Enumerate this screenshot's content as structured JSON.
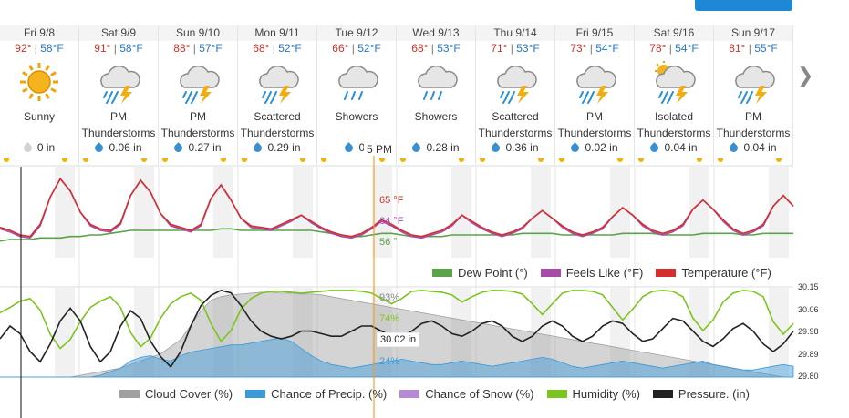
{
  "days": [
    {
      "date": "Fri 9/8",
      "hi": "92°",
      "lo": "58°F",
      "icon": "sunny-icon",
      "cond": [
        "Sunny"
      ],
      "precip": "0 in",
      "drop": "gray"
    },
    {
      "date": "Sat 9/9",
      "hi": "91°",
      "lo": "58°F",
      "icon": "thunderstorm-icon",
      "cond": [
        "PM",
        "Thunderstorms"
      ],
      "precip": "0.06 in",
      "drop": "blue"
    },
    {
      "date": "Sun 9/10",
      "hi": "88°",
      "lo": "57°F",
      "icon": "thunderstorm-icon",
      "cond": [
        "PM",
        "Thunderstorms"
      ],
      "precip": "0.27 in",
      "drop": "blue"
    },
    {
      "date": "Mon 9/11",
      "hi": "68°",
      "lo": "52°F",
      "icon": "thunderstorm-icon",
      "cond": [
        "Scattered",
        "Thunderstorms"
      ],
      "precip": "0.29 in",
      "drop": "blue"
    },
    {
      "date": "Tue 9/12",
      "hi": "66°",
      "lo": "52°F",
      "icon": "showers-icon",
      "cond": [
        "Showers"
      ],
      "precip": "0.",
      "drop": "blue"
    },
    {
      "date": "Wed 9/13",
      "hi": "68°",
      "lo": "53°F",
      "icon": "showers-icon",
      "cond": [
        "Showers"
      ],
      "precip": "0.28 in",
      "drop": "blue"
    },
    {
      "date": "Thu 9/14",
      "hi": "71°",
      "lo": "53°F",
      "icon": "thunderstorm-icon",
      "cond": [
        "Scattered",
        "Thunderstorms"
      ],
      "precip": "0.36 in",
      "drop": "blue"
    },
    {
      "date": "Fri 9/15",
      "hi": "73°",
      "lo": "54°F",
      "icon": "thunderstorm-icon",
      "cond": [
        "PM",
        "Thunderstorms"
      ],
      "precip": "0.02 in",
      "drop": "blue"
    },
    {
      "date": "Sat 9/16",
      "hi": "78°",
      "lo": "54°F",
      "icon": "isolated-thunderstorm-icon",
      "cond": [
        "Isolated",
        "Thunderstorms"
      ],
      "precip": "0.04 in",
      "drop": "blue"
    },
    {
      "date": "Sun 9/17",
      "hi": "81°",
      "lo": "55°F",
      "icon": "thunderstorm-icon",
      "cond": [
        "PM",
        "Thunderstorms"
      ],
      "precip": "0.04 in",
      "drop": "blue"
    }
  ],
  "cursor": {
    "time": "5 PM",
    "temp": "65 °F",
    "feels": "64 °F",
    "dew": "56 °",
    "humidity": "74%",
    "cloud": "93%",
    "precip_chance": "24%",
    "pressure": "30.02 in"
  },
  "temp_legend": [
    {
      "label": "Dew Point (°)",
      "color": "#5aa34a"
    },
    {
      "label": "Feels Like (°F)",
      "color": "#a64ca6"
    },
    {
      "label": "Temperature (°F)",
      "color": "#d32f2f"
    }
  ],
  "lower_legend": [
    {
      "label": "Cloud Cover (%)",
      "color": "#a0a0a0"
    },
    {
      "label": "Chance of Precip. (%)",
      "color": "#3a9ad9"
    },
    {
      "label": "Chance of Snow (%)",
      "color": "#b58ad6"
    },
    {
      "label": "Humidity (%)",
      "color": "#7cc41f"
    },
    {
      "label": "Pressure. (in)",
      "color": "#222222"
    }
  ],
  "pressure_axis": [
    "30.15",
    "30.06",
    "29.98",
    "29.89",
    "29.80"
  ],
  "next_icon": "chevron-right-icon",
  "chart_data": {
    "type": "line",
    "hours_per_point": 6,
    "temperature": [
      60,
      58,
      55,
      54,
      62,
      80,
      92,
      84,
      70,
      62,
      59,
      58,
      63,
      81,
      91,
      83,
      69,
      62,
      60,
      58,
      62,
      79,
      88,
      78,
      66,
      61,
      60,
      59,
      62,
      65,
      68,
      64,
      60,
      57,
      55,
      54,
      56,
      60,
      65,
      62,
      58,
      55,
      54,
      56,
      58,
      62,
      68,
      64,
      60,
      57,
      55,
      57,
      60,
      66,
      71,
      66,
      61,
      57,
      55,
      57,
      60,
      67,
      73,
      68,
      62,
      58,
      56,
      58,
      62,
      72,
      78,
      72,
      65,
      59,
      56,
      58,
      62,
      74,
      81,
      74
    ],
    "dew_point": [
      51,
      52,
      52,
      52,
      53,
      53,
      53,
      54,
      54,
      55,
      55,
      56,
      57,
      58,
      58,
      58,
      58,
      58,
      58,
      58,
      58,
      58,
      59,
      59,
      58,
      58,
      58,
      58,
      58,
      58,
      58,
      58,
      57,
      56,
      55,
      54,
      54,
      55,
      56,
      56,
      55,
      54,
      54,
      54,
      54,
      55,
      55,
      55,
      55,
      55,
      55,
      55,
      56,
      56,
      56,
      56,
      55,
      55,
      55,
      55,
      55,
      55,
      56,
      56,
      56,
      56,
      55,
      55,
      55,
      55,
      56,
      56,
      56,
      56,
      55,
      55,
      56,
      56,
      56,
      56
    ],
    "humidity": [
      72,
      78,
      85,
      88,
      75,
      48,
      32,
      42,
      62,
      78,
      85,
      90,
      78,
      50,
      34,
      44,
      66,
      82,
      90,
      94,
      86,
      60,
      40,
      52,
      76,
      88,
      94,
      96,
      96,
      95,
      94,
      95,
      96,
      97,
      97,
      97,
      96,
      94,
      88,
      82,
      88,
      96,
      97,
      96,
      95,
      92,
      84,
      90,
      95,
      97,
      97,
      96,
      93,
      82,
      70,
      82,
      94,
      97,
      97,
      96,
      92,
      78,
      64,
      76,
      90,
      96,
      97,
      96,
      90,
      66,
      52,
      64,
      84,
      94,
      97,
      96,
      90,
      62,
      48,
      60
    ],
    "cloud_cover": [
      0,
      0,
      0,
      0,
      0,
      0,
      0,
      0,
      2,
      4,
      6,
      8,
      10,
      14,
      18,
      22,
      26,
      34,
      42,
      58,
      74,
      86,
      90,
      92,
      93,
      94,
      95,
      95,
      94,
      94,
      93,
      93,
      92,
      90,
      88,
      86,
      84,
      82,
      80,
      78,
      76,
      74,
      72,
      70,
      68,
      66,
      64,
      62,
      60,
      58,
      56,
      54,
      52,
      50,
      48,
      46,
      44,
      42,
      40,
      38,
      36,
      34,
      32,
      30,
      28,
      26,
      24,
      22,
      20,
      18,
      16,
      14,
      12,
      10,
      8,
      6,
      4,
      2,
      0,
      0
    ],
    "precip_chance": [
      0,
      0,
      0,
      0,
      0,
      0,
      0,
      0,
      0,
      0,
      2,
      6,
      10,
      18,
      22,
      24,
      20,
      18,
      24,
      28,
      30,
      32,
      34,
      36,
      36,
      38,
      40,
      42,
      44,
      40,
      32,
      24,
      18,
      14,
      12,
      10,
      12,
      14,
      16,
      18,
      20,
      18,
      16,
      14,
      14,
      16,
      18,
      16,
      14,
      12,
      14,
      16,
      18,
      20,
      22,
      20,
      16,
      12,
      10,
      12,
      14,
      16,
      18,
      16,
      14,
      12,
      10,
      12,
      14,
      16,
      18,
      14,
      12,
      10,
      8,
      8,
      10,
      12,
      14,
      12
    ],
    "pressure": [
      29.95,
      30.0,
      29.97,
      29.9,
      29.86,
      29.93,
      30.02,
      30.07,
      30.02,
      29.92,
      29.86,
      29.9,
      30.0,
      30.06,
      30.03,
      29.94,
      29.88,
      29.84,
      29.9,
      30.0,
      30.08,
      30.12,
      30.14,
      30.13,
      30.08,
      30.02,
      29.98,
      29.96,
      29.95,
      29.96,
      29.98,
      29.98,
      29.97,
      29.96,
      29.96,
      29.98,
      30.0,
      30.0,
      29.98,
      29.96,
      29.96,
      29.98,
      30.01,
      30.02,
      30.0,
      29.97,
      29.96,
      29.98,
      30.01,
      30.02,
      30.0,
      29.96,
      29.94,
      29.96,
      30.0,
      30.02,
      30.0,
      29.96,
      29.94,
      29.96,
      30.0,
      30.02,
      30.01,
      29.97,
      29.94,
      29.95,
      29.99,
      30.03,
      30.02,
      29.98,
      29.94,
      29.92,
      29.95,
      29.99,
      30.01,
      29.98,
      29.93,
      29.9,
      29.93,
      29.98
    ],
    "pressure_ylim": [
      29.8,
      30.15
    ],
    "temp_ylim": [
      40,
      100
    ]
  }
}
